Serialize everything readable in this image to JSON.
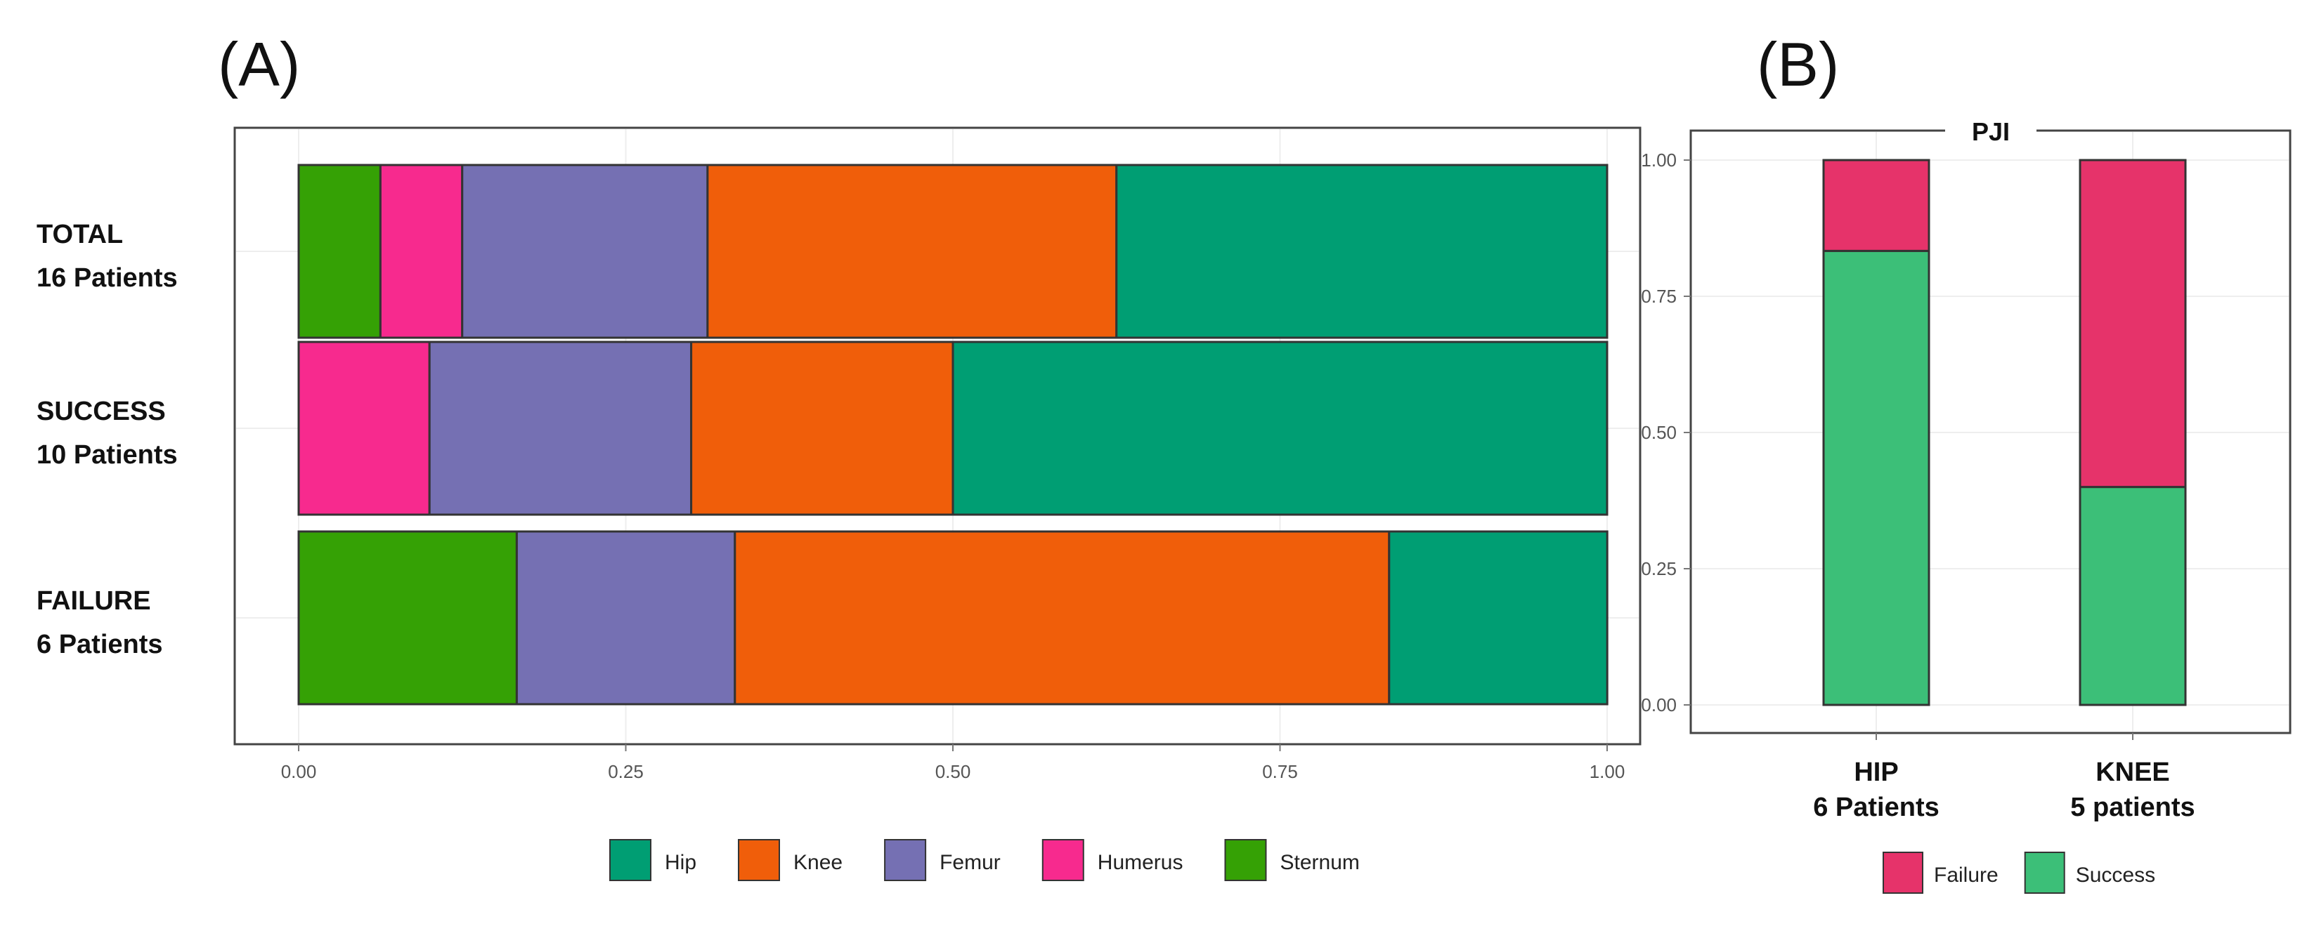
{
  "panels": {
    "a_letter": "(A)",
    "b_letter": "(B)"
  },
  "colors": {
    "Hip": "#009E73",
    "Knee": "#F05E0A",
    "Femur": "#7570B3",
    "Humerus": "#F72A8E",
    "Sternum": "#35A105",
    "Failure": "#E6336A",
    "Success": "#3CBF78"
  },
  "chart_data": [
    {
      "type": "bar",
      "orientation": "horizontal",
      "stacked": true,
      "categories": [
        {
          "line1": "TOTAL",
          "line2": "16 Patients"
        },
        {
          "line1": "SUCCESS",
          "line2": "10 Patients"
        },
        {
          "line1": "FAILURE",
          "line2": "6 Patients"
        }
      ],
      "series": [
        {
          "name": "Sternum",
          "values": [
            0.0625,
            0.0,
            0.1667
          ]
        },
        {
          "name": "Humerus",
          "values": [
            0.0625,
            0.1,
            0.0
          ]
        },
        {
          "name": "Femur",
          "values": [
            0.1875,
            0.2,
            0.1667
          ]
        },
        {
          "name": "Knee",
          "values": [
            0.3125,
            0.2,
            0.5
          ]
        },
        {
          "name": "Hip",
          "values": [
            0.375,
            0.5,
            0.1667
          ]
        }
      ],
      "legend_order": [
        "Hip",
        "Knee",
        "Femur",
        "Humerus",
        "Sternum"
      ],
      "legend_position": "bottom",
      "xlim": [
        0,
        1
      ],
      "xticks": [
        "0.00",
        "0.25",
        "0.50",
        "0.75",
        "1.00"
      ],
      "grid": true,
      "title": "",
      "xlabel": "",
      "ylabel": ""
    },
    {
      "type": "bar",
      "stacked": true,
      "strip_title": "PJI",
      "categories": [
        {
          "line1": "HIP",
          "line2": "6 Patients"
        },
        {
          "line1": "KNEE",
          "line2": "5 patients"
        }
      ],
      "series": [
        {
          "name": "Success",
          "values": [
            0.8333,
            0.4
          ]
        },
        {
          "name": "Failure",
          "values": [
            0.1667,
            0.6
          ]
        }
      ],
      "legend_order": [
        "Failure",
        "Success"
      ],
      "legend_position": "bottom",
      "ylim": [
        0,
        1
      ],
      "yticks": [
        "0.00",
        "0.25",
        "0.50",
        "0.75",
        "1.00"
      ],
      "grid": true,
      "title": "",
      "xlabel": "",
      "ylabel": ""
    }
  ]
}
